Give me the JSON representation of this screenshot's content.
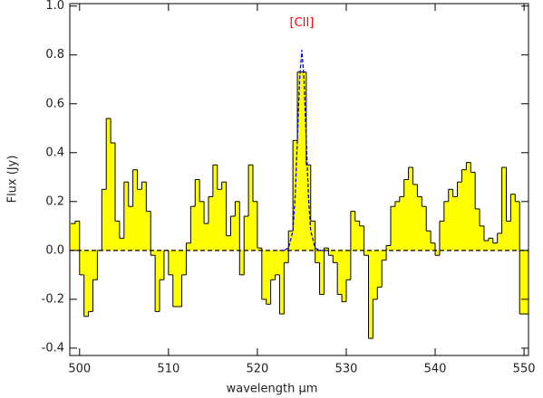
{
  "chart_data": {
    "type": "histogram",
    "xlabel": "wavelength μm",
    "ylabel": "Flux (Jy)",
    "xlim": [
      498.9,
      550.5
    ],
    "ylim": [
      -0.43,
      1.01
    ],
    "xticks": [
      500,
      510,
      520,
      530,
      540,
      550
    ],
    "yticks": [
      -0.4,
      -0.2,
      {
        "value": 0,
        "label": "0.0"
      },
      0.2,
      0.4,
      0.6,
      0.8,
      {
        "value": 1,
        "label": "1.0"
      }
    ],
    "color": "#ffff00",
    "bins": [
      499.0,
      499.5,
      500.0,
      500.5,
      501.0,
      501.5,
      502.0,
      502.5,
      503.0,
      503.5,
      504.0,
      504.5,
      505.0,
      505.5,
      506.0,
      506.5,
      507.0,
      507.5,
      508.0,
      508.5,
      509.0,
      509.5,
      510.0,
      510.5,
      511.0,
      511.5,
      512.0,
      512.5,
      513.0,
      513.5,
      514.0,
      514.5,
      515.0,
      515.5,
      516.0,
      516.5,
      517.0,
      517.5,
      518.0,
      518.5,
      519.0,
      519.5,
      520.0,
      520.5,
      521.0,
      521.5,
      522.0,
      522.5,
      523.0,
      523.5,
      524.0,
      524.5,
      525.0,
      525.5,
      526.0,
      526.5,
      527.0,
      527.5,
      528.0,
      528.5,
      529.0,
      529.5,
      530.0,
      530.5,
      531.0,
      531.5,
      532.0,
      532.5,
      533.0,
      533.5,
      534.0,
      534.5,
      535.0,
      535.5,
      536.0,
      536.5,
      537.0,
      537.5,
      538.0,
      538.5,
      539.0,
      539.5,
      540.0,
      540.5,
      541.0,
      541.5,
      542.0,
      542.5,
      543.0,
      543.5,
      544.0,
      544.5,
      545.0,
      545.5,
      546.0,
      546.5,
      547.0,
      547.5,
      548.0,
      548.5,
      549.0,
      549.5,
      550.0,
      550.5
    ],
    "values": [
      0.11,
      0.12,
      -0.1,
      -0.27,
      -0.25,
      -0.12,
      0.0,
      0.25,
      0.54,
      0.44,
      0.12,
      0.05,
      0.28,
      0.18,
      0.33,
      0.25,
      0.28,
      0.16,
      -0.02,
      -0.25,
      -0.12,
      0.0,
      -0.1,
      -0.23,
      -0.23,
      -0.1,
      0.03,
      0.18,
      0.29,
      0.2,
      0.11,
      0.22,
      0.35,
      0.25,
      0.28,
      0.06,
      0.14,
      0.2,
      -0.1,
      0.14,
      0.35,
      0.2,
      0.01,
      -0.2,
      -0.22,
      -0.12,
      -0.1,
      -0.26,
      -0.05,
      0.08,
      0.45,
      0.73,
      0.73,
      0.35,
      0.12,
      -0.05,
      -0.18,
      0.01,
      -0.02,
      -0.05,
      -0.18,
      -0.21,
      -0.12,
      0.16,
      0.12,
      0.1,
      -0.02,
      -0.36,
      -0.2,
      -0.15,
      -0.04,
      0.02,
      0.18,
      0.2,
      0.22,
      0.29,
      0.34,
      0.27,
      0.22,
      0.18,
      0.08,
      0.03,
      -0.02,
      0.12,
      0.2,
      0.25,
      0.22,
      0.28,
      0.33,
      0.36,
      0.32,
      0.17,
      0.1,
      0.04,
      0.05,
      0.03,
      0.07,
      0.34,
      0.12,
      0.23,
      0.2,
      -0.26,
      -0.26
    ],
    "hline": 0,
    "fit": {
      "color": "#0000ff",
      "x": [
        522.5,
        523.0,
        523.5,
        524.0,
        524.25,
        524.5,
        524.75,
        525.0,
        525.25,
        525.5,
        525.75,
        526.0,
        526.5,
        527.0,
        527.5
      ],
      "values": [
        0,
        0,
        0.01,
        0.08,
        0.22,
        0.45,
        0.7,
        0.82,
        0.7,
        0.45,
        0.22,
        0.08,
        0.01,
        0,
        0
      ]
    },
    "annotation": {
      "text": "[CII]",
      "x": 525,
      "y": 0.93,
      "color": "#ff0000"
    }
  }
}
